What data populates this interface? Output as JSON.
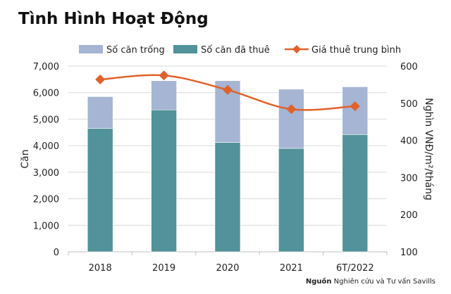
{
  "chart_data": {
    "type": "bar",
    "title": "Tình Hình Hoạt Động",
    "categories": [
      "2018",
      "2019",
      "2020",
      "2021",
      "6T/2022"
    ],
    "series": [
      {
        "name": "Số căn đã thuê",
        "type": "stacked-bar",
        "axis": "left",
        "color": "#52929a",
        "values": [
          4650,
          5350,
          4120,
          3900,
          4420
        ]
      },
      {
        "name": "Số căn trống",
        "type": "stacked-bar",
        "axis": "left",
        "color": "#a5b5d3",
        "values": [
          1200,
          1100,
          2330,
          2230,
          1800
        ]
      },
      {
        "name": "Giá thuê trung bình",
        "type": "line",
        "axis": "right",
        "color": "#e0622a",
        "marker": "diamond",
        "values": [
          564,
          575,
          536,
          484,
          492
        ]
      }
    ],
    "legend_order": [
      "Số căn trống",
      "Số căn đã thuê",
      "Giá thuê trung bình"
    ],
    "legend_position": "top",
    "ylabel": "Căn",
    "ylabel_right": "Nghìn VNĐ/m²/tháng",
    "ylim": [
      0,
      7000
    ],
    "ylim_right": [
      100,
      600
    ],
    "yticks": [
      "0",
      "1,000",
      "2,000",
      "3,000",
      "4,000",
      "5,000",
      "6,000",
      "7,000"
    ],
    "yticks_right": [
      "100",
      "200",
      "300",
      "400",
      "500",
      "600"
    ],
    "grid": true
  },
  "source": {
    "label": "Nguồn",
    "text": "Nghiên cứu và Tư vấn Savills"
  }
}
